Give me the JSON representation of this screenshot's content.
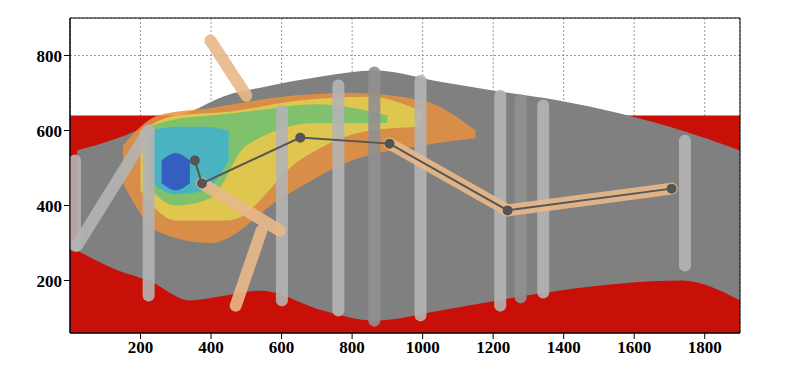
{
  "chart_data": {
    "type": "composite",
    "xlim": [
      0,
      1900
    ],
    "ylim": [
      60,
      900
    ],
    "xticks": [
      200,
      400,
      600,
      800,
      1000,
      1200,
      1400,
      1600,
      1800
    ],
    "yticks": [
      200,
      400,
      600,
      800
    ],
    "grid": true,
    "series": [
      {
        "type": "area",
        "color": "#c81008",
        "x": [
          0,
          1900
        ],
        "lower": [
          60,
          60
        ],
        "upper": [
          640,
          640
        ]
      },
      {
        "type": "area",
        "color": "#808080",
        "x": [
          20,
          136,
          223,
          340,
          441,
          543,
          717,
          863,
          1050,
          1212,
          1386,
          1735,
          1900
        ],
        "lower": [
          280,
          227,
          200,
          147,
          160,
          173,
          120,
          93,
          120,
          147,
          173,
          200,
          147
        ],
        "upper": [
          547,
          580,
          613,
          650,
          693,
          715,
          745,
          760,
          730,
          705,
          680,
          600,
          547
        ]
      },
      {
        "type": "area",
        "color": "#e89040",
        "x": [
          150,
          250,
          400,
          600,
          800,
          1000,
          1150
        ],
        "lower": [
          460,
          330,
          300,
          420,
          520,
          560,
          580
        ],
        "upper": [
          560,
          640,
          660,
          690,
          700,
          680,
          600
        ]
      },
      {
        "type": "area",
        "color": "#e0d050",
        "x": [
          200,
          300,
          450,
          650,
          850,
          1000
        ],
        "lower": [
          440,
          360,
          360,
          520,
          600,
          610
        ],
        "upper": [
          600,
          640,
          650,
          680,
          690,
          650
        ]
      },
      {
        "type": "area",
        "color": "#70c070",
        "x": [
          220,
          300,
          400,
          500,
          700,
          900
        ],
        "lower": [
          450,
          400,
          420,
          560,
          620,
          620
        ],
        "upper": [
          610,
          630,
          640,
          650,
          670,
          640
        ]
      },
      {
        "type": "area",
        "color": "#40b0d0",
        "x": [
          230,
          300,
          380,
          450
        ],
        "lower": [
          460,
          430,
          440,
          520
        ],
        "upper": [
          600,
          610,
          610,
          600
        ]
      },
      {
        "type": "area",
        "color": "#3050c0",
        "x": [
          260,
          300,
          340
        ],
        "lower": [
          460,
          440,
          460
        ],
        "upper": [
          520,
          540,
          520
        ]
      },
      {
        "type": "line",
        "line_style": "thick",
        "color": "#b4b4b4",
        "x": [
          14,
          14
        ],
        "values": [
          520,
          293
        ]
      },
      {
        "type": "line",
        "line_style": "thick",
        "color": "#b4b4b4",
        "x": [
          20,
          223
        ],
        "values": [
          293,
          600
        ]
      },
      {
        "type": "line",
        "line_style": "thick",
        "color": "#b4b4b4",
        "x": [
          223,
          223
        ],
        "values": [
          600,
          160
        ]
      },
      {
        "type": "line",
        "line_style": "thick",
        "color": "#b4b4b4",
        "x": [
          601,
          601
        ],
        "values": [
          653,
          147
        ]
      },
      {
        "type": "line",
        "line_style": "thick",
        "color": "#b4b4b4",
        "x": [
          761,
          761
        ],
        "values": [
          720,
          120
        ]
      },
      {
        "type": "line",
        "line_style": "thick",
        "color": "#909090",
        "x": [
          863,
          863
        ],
        "values": [
          755,
          93
        ]
      },
      {
        "type": "line",
        "line_style": "thick",
        "color": "#b4b4b4",
        "x": [
          994,
          994
        ],
        "values": [
          733,
          107
        ]
      },
      {
        "type": "line",
        "line_style": "thick",
        "color": "#b4b4b4",
        "x": [
          1220,
          1220
        ],
        "values": [
          693,
          133
        ]
      },
      {
        "type": "line",
        "line_style": "thick",
        "color": "#909090",
        "x": [
          1278,
          1278
        ],
        "values": [
          680,
          155
        ]
      },
      {
        "type": "line",
        "line_style": "thick",
        "color": "#b4b4b4",
        "x": [
          1342,
          1342
        ],
        "values": [
          667,
          168
        ]
      },
      {
        "type": "line",
        "line_style": "thick",
        "color": "#b4b4b4",
        "x": [
          1744,
          1744
        ],
        "values": [
          573,
          240
        ]
      },
      {
        "type": "line",
        "line_style": "thick",
        "color": "#e8b888",
        "x": [
          398,
          500
        ],
        "values": [
          840,
          693
        ]
      },
      {
        "type": "line",
        "line_style": "thick",
        "color": "#e8b888",
        "x": [
          543,
          470
        ],
        "values": [
          333,
          133
        ]
      },
      {
        "type": "line",
        "line_style": "thick",
        "color": "#e8b888",
        "x": [
          374,
          595
        ],
        "values": [
          459,
          333
        ]
      },
      {
        "type": "line",
        "line_style": "thick",
        "color": "#e8b888",
        "x": [
          906,
          1241
        ],
        "values": [
          565,
          387
        ]
      },
      {
        "type": "line",
        "line_style": "thick",
        "color": "#e8b888",
        "x": [
          1241,
          1706
        ],
        "values": [
          387,
          445
        ]
      },
      {
        "type": "line",
        "line_style": "solid",
        "marker": "circle",
        "color": "#555555",
        "x": [
          354,
          374,
          653,
          906,
          1241,
          1706
        ],
        "values": [
          520,
          459,
          581,
          565,
          387,
          445
        ]
      }
    ]
  }
}
